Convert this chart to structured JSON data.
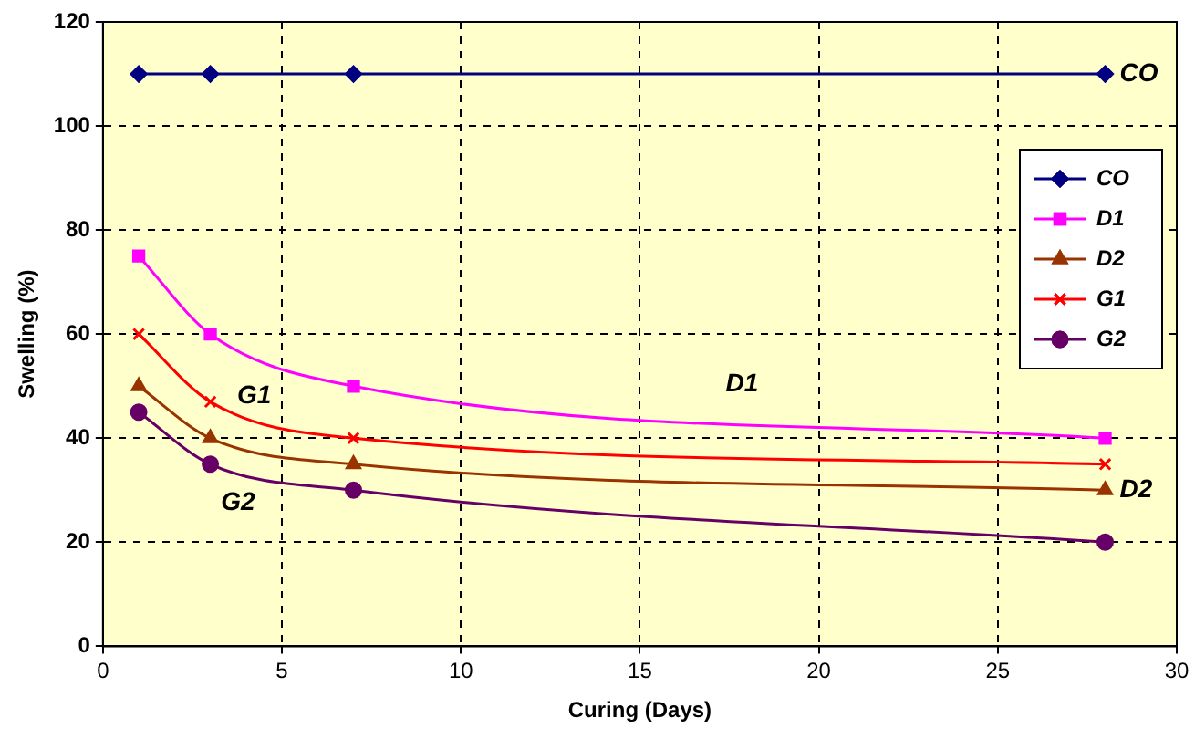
{
  "chart_data": {
    "type": "line",
    "xlabel": "Curing (Days)",
    "ylabel": "Swelling (%)",
    "x": [
      1,
      3,
      7,
      28
    ],
    "series": [
      {
        "name": "CO",
        "color": "#000080",
        "marker": "diamond",
        "values": [
          110,
          110,
          110,
          110
        ]
      },
      {
        "name": "D1",
        "color": "#ff00ff",
        "marker": "square",
        "values": [
          75,
          60,
          50,
          40
        ]
      },
      {
        "name": "D2",
        "color": "#993300",
        "marker": "triangle",
        "values": [
          50,
          40,
          35,
          30
        ]
      },
      {
        "name": "G1",
        "color": "#ff0000",
        "marker": "cross",
        "values": [
          60,
          47,
          40,
          35
        ]
      },
      {
        "name": "G2",
        "color": "#660066",
        "marker": "circle",
        "values": [
          45,
          35,
          30,
          20
        ]
      }
    ],
    "annotations": [
      {
        "text": "CO",
        "x": 28,
        "y": 110
      },
      "D1",
      "G1",
      {
        "text": "D2",
        "x": 28,
        "y": 30
      },
      "G2"
    ],
    "xlim": [
      0,
      30
    ],
    "xticks": [
      0,
      5,
      10,
      15,
      20,
      25,
      30
    ],
    "ylim": [
      0,
      120
    ],
    "yticks": [
      0,
      20,
      40,
      60,
      80,
      100,
      120
    ],
    "grid": true,
    "legend": "right",
    "line_style": "solid"
  }
}
